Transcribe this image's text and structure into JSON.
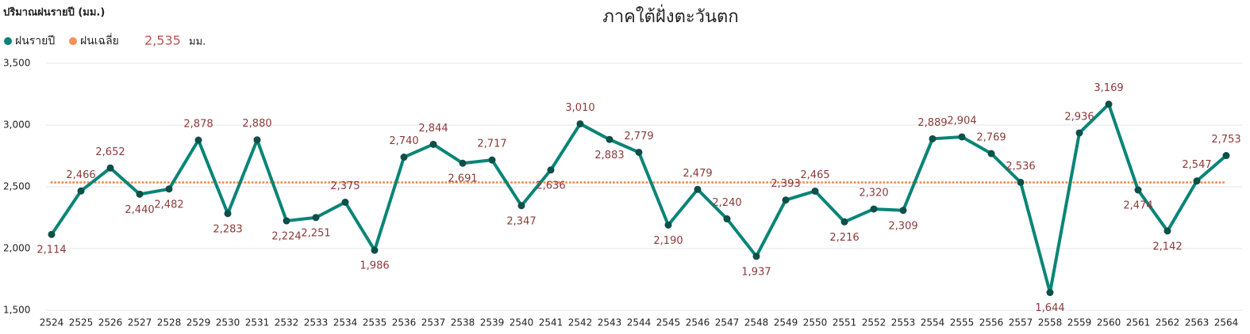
{
  "chart_data": {
    "type": "line",
    "title": "ภาคใต้ฝั่งตะวันตก",
    "y_label": "ปริมาณฝนรายปี (มม.)",
    "categories": [
      "2524",
      "2525",
      "2526",
      "2527",
      "2528",
      "2529",
      "2530",
      "2531",
      "2532",
      "2533",
      "2534",
      "2535",
      "2536",
      "2537",
      "2538",
      "2539",
      "2540",
      "2541",
      "2542",
      "2543",
      "2544",
      "2545",
      "2546",
      "2547",
      "2548",
      "2549",
      "2550",
      "2551",
      "2552",
      "2553",
      "2554",
      "2555",
      "2556",
      "2557",
      "2558",
      "2559",
      "2560",
      "2561",
      "2562",
      "2563",
      "2564"
    ],
    "series": [
      {
        "name": "ฝนรายปี",
        "color": "#088577",
        "marker_color": "#0d4f49",
        "values": [
          2114,
          2466,
          2652,
          2440,
          2482,
          2878,
          2283,
          2880,
          2224,
          2251,
          2375,
          1986,
          2740,
          2844,
          2691,
          2717,
          2347,
          2636,
          3010,
          2883,
          2779,
          2190,
          2479,
          2240,
          1937,
          2393,
          2465,
          2216,
          2320,
          2309,
          2889,
          2904,
          2769,
          2536,
          1644,
          2936,
          3169,
          2474,
          2142,
          2547,
          2753
        ],
        "value_labels": [
          "2,114",
          "2,466",
          "2,652",
          "2,440",
          "2,482",
          "2,878",
          "2,283",
          "2,880",
          "2,224",
          "2,251",
          "2,375",
          "1,986",
          "2,740",
          "2,844",
          "2,691",
          "2,717",
          "2,347",
          "2,636",
          "3,010",
          "2,883",
          "2,779",
          "2,190",
          "2,479",
          "2,240",
          "1,937",
          "2,393",
          "2,465",
          "2,216",
          "2,320",
          "2,309",
          "2,889",
          "2,904",
          "2,769",
          "2,536",
          "1,644",
          "2,936",
          "3,169",
          "2,474",
          "2,142",
          "2,547",
          "2,753"
        ]
      }
    ],
    "reference_line": {
      "name": "ฝนเฉลี่ย",
      "value": 2535,
      "value_label": "2,535",
      "unit": "มม.",
      "color": "#f4915a"
    },
    "ylim": [
      1500,
      3500
    ],
    "yticks": [
      {
        "value": 1500,
        "label": "1,500"
      },
      {
        "value": 2000,
        "label": "2,000"
      },
      {
        "value": 2500,
        "label": "2,500"
      },
      {
        "value": 3000,
        "label": "3,000"
      },
      {
        "value": 3500,
        "label": "3,500"
      }
    ],
    "grid": true
  }
}
